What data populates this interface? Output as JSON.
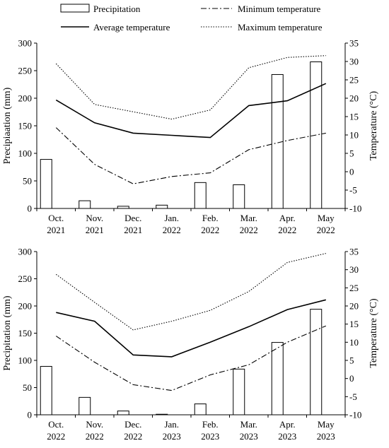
{
  "legend": {
    "precipitation": "Precipitation",
    "minimum": "Minimum temperature",
    "average": "Average temperature",
    "maximum": "Maximum temperature"
  },
  "chart_data": [
    {
      "type": "bar",
      "ylabel": "Precipiaation (mm)",
      "y2label": "Temperature (°C)",
      "ylim": [
        0,
        300
      ],
      "y2lim": [
        -10,
        35
      ],
      "yticks": [
        "0",
        "50",
        "100",
        "150",
        "200",
        "250",
        "300"
      ],
      "y2ticks": [
        "-10",
        "-5",
        "0",
        "5",
        "10",
        "15",
        "20",
        "25",
        "30",
        "35"
      ],
      "categories": [
        [
          "Oct.",
          "2021"
        ],
        [
          "Nov.",
          "2021"
        ],
        [
          "Dec.",
          "2021"
        ],
        [
          "Jan.",
          "2022"
        ],
        [
          "Feb.",
          "2022"
        ],
        [
          "Mar.",
          "2022"
        ],
        [
          "Apr.",
          "2022"
        ],
        [
          "May",
          "2022"
        ]
      ],
      "series": [
        {
          "name": "Precipitation",
          "type": "bar",
          "axis": "left",
          "values": [
            89,
            14,
            4,
            6,
            47,
            43,
            243,
            266
          ]
        },
        {
          "name": "Minimum temperature",
          "type": "line",
          "axis": "right",
          "values": [
            12,
            2,
            -3.3,
            -1.3,
            -0.3,
            6,
            8.5,
            10.5
          ]
        },
        {
          "name": "Average temperature",
          "type": "line",
          "axis": "right",
          "values": [
            19.5,
            13.3,
            10.5,
            9.9,
            9.3,
            18,
            19.3,
            24
          ]
        },
        {
          "name": "Maximum temperature",
          "type": "line",
          "axis": "right",
          "values": [
            29.4,
            18.3,
            16.3,
            14.3,
            16.8,
            28.3,
            31.1,
            31.6
          ]
        }
      ]
    },
    {
      "type": "bar",
      "ylabel": "Precipitation (mm)",
      "y2label": "Temperature (°C)",
      "ylim": [
        0,
        300
      ],
      "y2lim": [
        -10,
        35
      ],
      "yticks": [
        "0",
        "50",
        "100",
        "150",
        "200",
        "250",
        "300"
      ],
      "y2ticks": [
        "-10",
        "-5",
        "0",
        "5",
        "10",
        "15",
        "20",
        "25",
        "30",
        "35"
      ],
      "categories": [
        [
          "Oct.",
          "2022"
        ],
        [
          "Nov.",
          "2022"
        ],
        [
          "Dec.",
          "2022"
        ],
        [
          "Jan.",
          "2023"
        ],
        [
          "Feb.",
          "2023"
        ],
        [
          "Mar.",
          "2023"
        ],
        [
          "Apr.",
          "2023"
        ],
        [
          "May",
          "2023"
        ]
      ],
      "series": [
        {
          "name": "Precipitation",
          "type": "bar",
          "axis": "left",
          "values": [
            89,
            32,
            7,
            1,
            20,
            84,
            133,
            194
          ]
        },
        {
          "name": "Minimum temperature",
          "type": "line",
          "axis": "right",
          "values": [
            11.7,
            4.5,
            -1.7,
            -3.3,
            1,
            3.8,
            10,
            14.5
          ]
        },
        {
          "name": "Average temperature",
          "type": "line",
          "axis": "right",
          "values": [
            18.2,
            15.8,
            6.5,
            6,
            10,
            14.3,
            19,
            21.7
          ]
        },
        {
          "name": "Maximum temperature",
          "type": "line",
          "axis": "right",
          "values": [
            28.7,
            21,
            13.4,
            15.8,
            18.8,
            24,
            32,
            34.5
          ]
        }
      ]
    }
  ]
}
